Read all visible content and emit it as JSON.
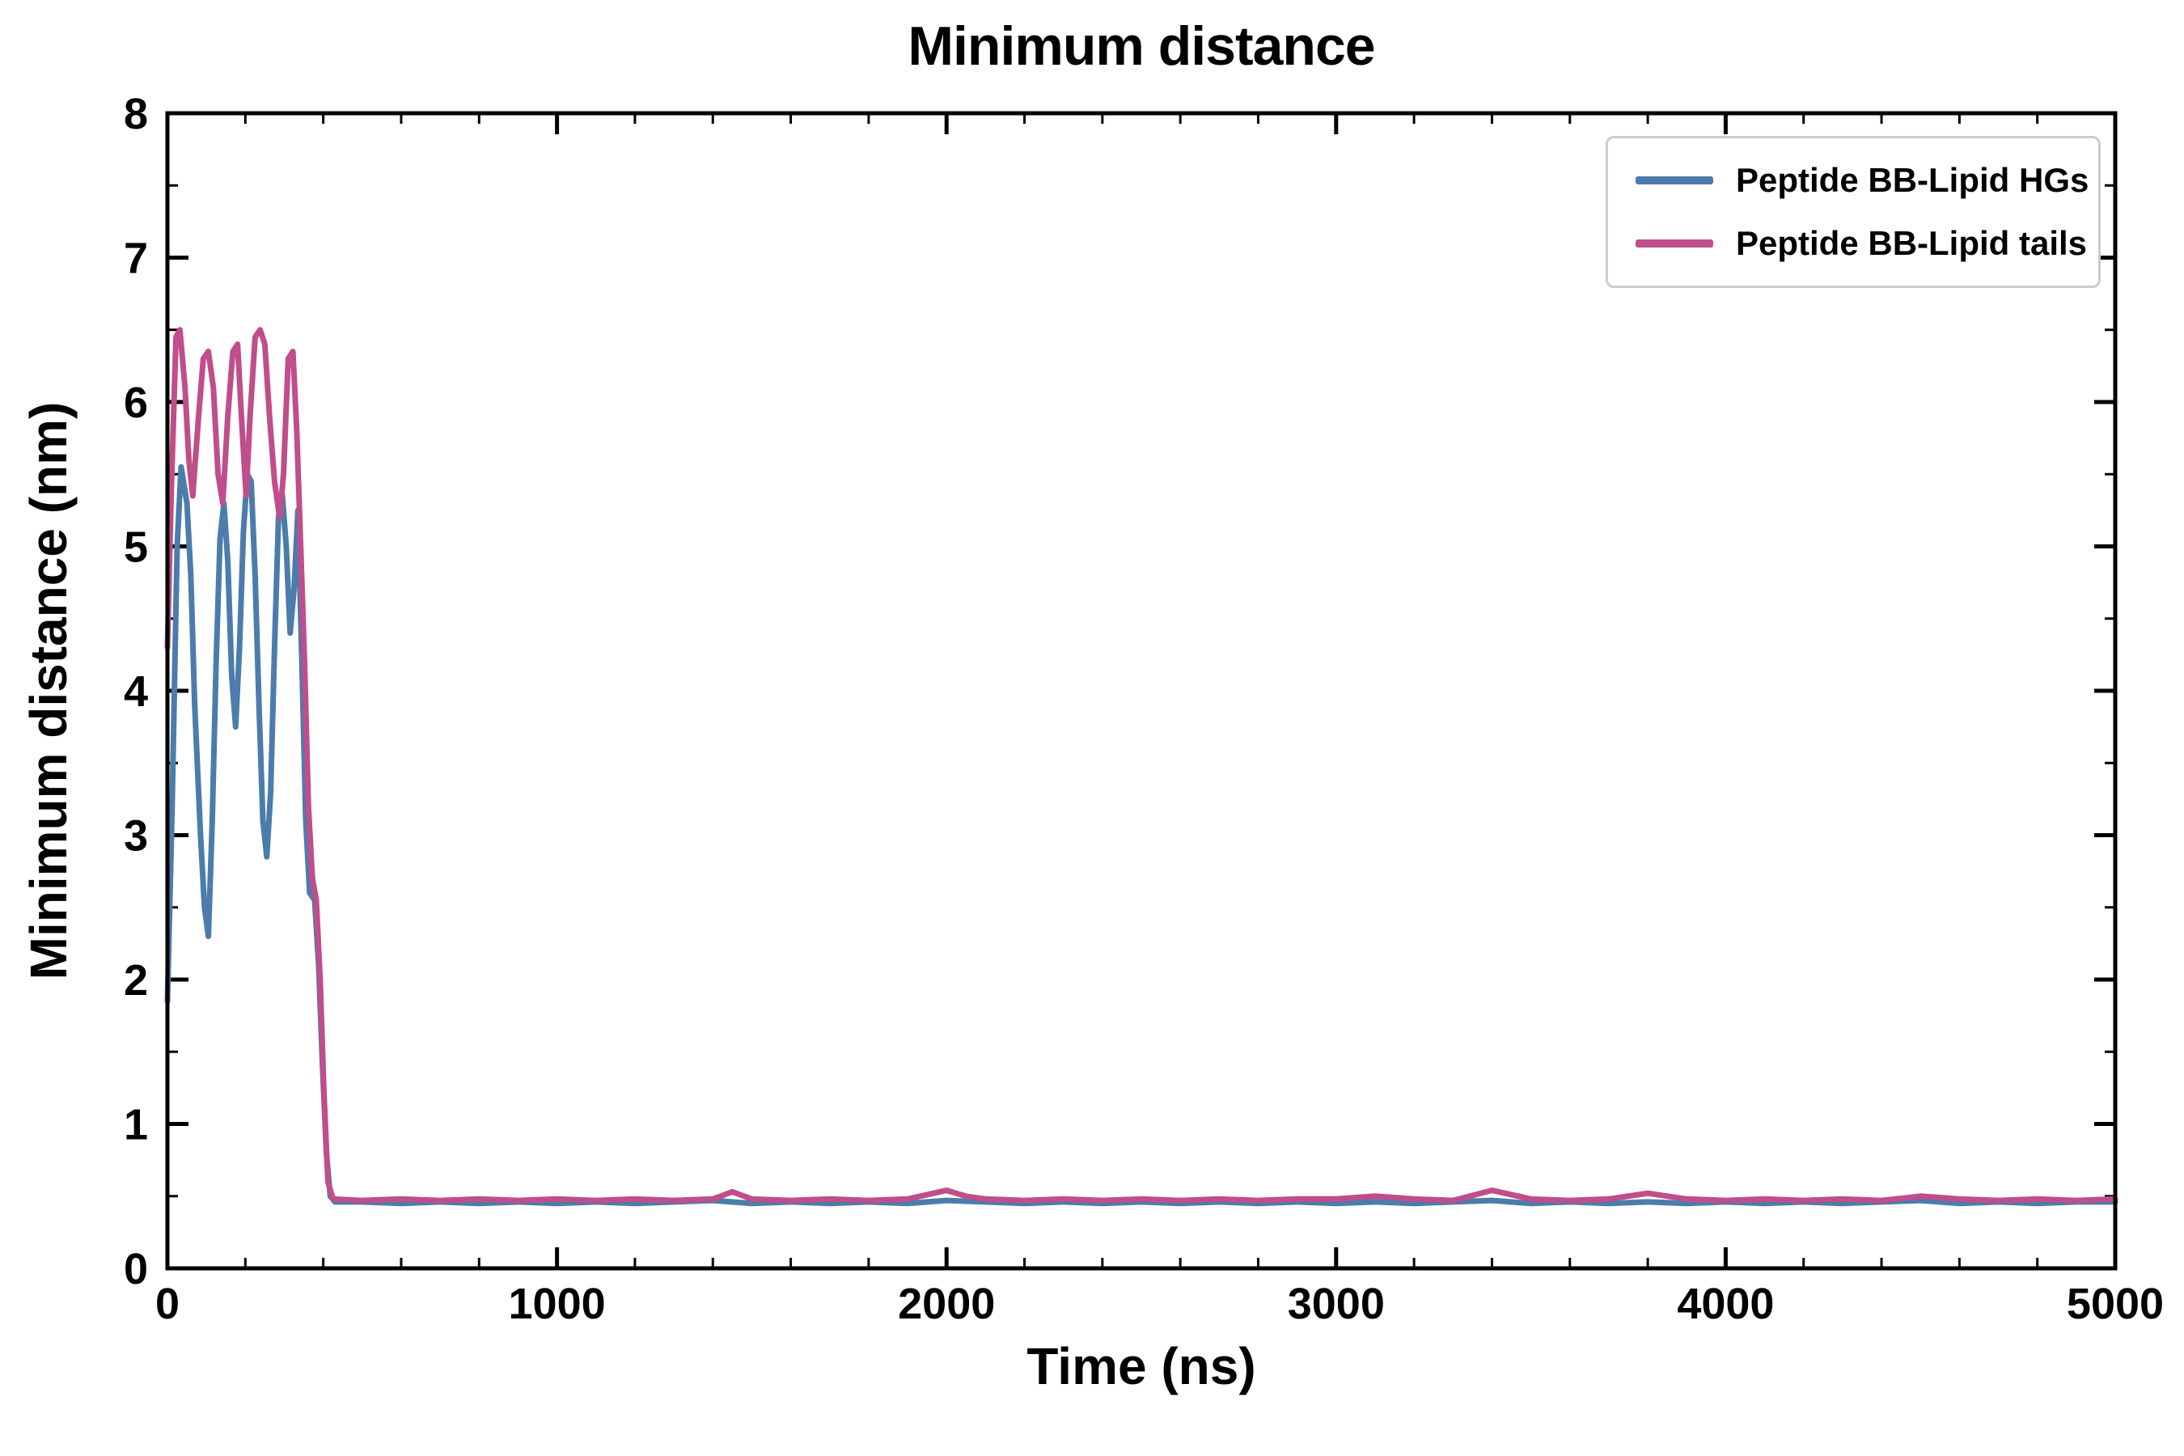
{
  "chart_data": {
    "type": "line",
    "title": "Minimum distance",
    "xlabel": "Time (ns)",
    "ylabel": "Minimum distance (nm)",
    "xlim": [
      0,
      5000
    ],
    "ylim": [
      0,
      8
    ],
    "xticks": [
      0,
      1000,
      2000,
      3000,
      4000,
      5000
    ],
    "yticks": [
      0,
      1,
      2,
      3,
      4,
      5,
      6,
      7,
      8
    ],
    "x_minor_step": 200,
    "y_minor_step": 0.5,
    "grid": false,
    "legend_position": "upper right",
    "axis_color": "#000000",
    "series": [
      {
        "name": "Peptide BB-Lipid HGs",
        "color": "#4c7cac",
        "points": [
          [
            0,
            1.85
          ],
          [
            12,
            3.2
          ],
          [
            25,
            5.0
          ],
          [
            35,
            5.55
          ],
          [
            50,
            5.3
          ],
          [
            60,
            4.8
          ],
          [
            70,
            3.9
          ],
          [
            85,
            3.0
          ],
          [
            95,
            2.5
          ],
          [
            105,
            2.3
          ],
          [
            115,
            3.1
          ],
          [
            125,
            4.2
          ],
          [
            135,
            5.05
          ],
          [
            145,
            5.3
          ],
          [
            155,
            4.9
          ],
          [
            165,
            4.1
          ],
          [
            175,
            3.75
          ],
          [
            185,
            4.3
          ],
          [
            195,
            5.1
          ],
          [
            205,
            5.5
          ],
          [
            215,
            5.45
          ],
          [
            225,
            4.8
          ],
          [
            235,
            3.9
          ],
          [
            245,
            3.1
          ],
          [
            255,
            2.85
          ],
          [
            265,
            3.3
          ],
          [
            275,
            4.3
          ],
          [
            285,
            5.2
          ],
          [
            295,
            5.35
          ],
          [
            305,
            5.0
          ],
          [
            315,
            4.4
          ],
          [
            325,
            4.7
          ],
          [
            335,
            5.25
          ],
          [
            345,
            4.2
          ],
          [
            355,
            3.1
          ],
          [
            365,
            2.6
          ],
          [
            378,
            2.55
          ],
          [
            388,
            2.1
          ],
          [
            398,
            1.4
          ],
          [
            408,
            0.8
          ],
          [
            418,
            0.5
          ],
          [
            430,
            0.46
          ],
          [
            500,
            0.46
          ],
          [
            600,
            0.45
          ],
          [
            700,
            0.46
          ],
          [
            800,
            0.45
          ],
          [
            900,
            0.46
          ],
          [
            1000,
            0.45
          ],
          [
            1100,
            0.46
          ],
          [
            1200,
            0.45
          ],
          [
            1300,
            0.46
          ],
          [
            1400,
            0.47
          ],
          [
            1500,
            0.45
          ],
          [
            1600,
            0.46
          ],
          [
            1700,
            0.45
          ],
          [
            1800,
            0.46
          ],
          [
            1900,
            0.45
          ],
          [
            2000,
            0.47
          ],
          [
            2100,
            0.46
          ],
          [
            2200,
            0.45
          ],
          [
            2300,
            0.46
          ],
          [
            2400,
            0.45
          ],
          [
            2500,
            0.46
          ],
          [
            2600,
            0.45
          ],
          [
            2700,
            0.46
          ],
          [
            2800,
            0.45
          ],
          [
            2900,
            0.46
          ],
          [
            3000,
            0.45
          ],
          [
            3100,
            0.46
          ],
          [
            3200,
            0.45
          ],
          [
            3300,
            0.46
          ],
          [
            3400,
            0.47
          ],
          [
            3500,
            0.45
          ],
          [
            3600,
            0.46
          ],
          [
            3700,
            0.45
          ],
          [
            3800,
            0.46
          ],
          [
            3900,
            0.45
          ],
          [
            4000,
            0.46
          ],
          [
            4100,
            0.45
          ],
          [
            4200,
            0.46
          ],
          [
            4300,
            0.45
          ],
          [
            4400,
            0.46
          ],
          [
            4500,
            0.47
          ],
          [
            4600,
            0.45
          ],
          [
            4700,
            0.46
          ],
          [
            4800,
            0.45
          ],
          [
            4900,
            0.46
          ],
          [
            5000,
            0.46
          ]
        ]
      },
      {
        "name": "Peptide BB-Lipid tails",
        "color": "#bf4e8a",
        "points": [
          [
            0,
            4.3
          ],
          [
            10,
            5.4
          ],
          [
            22,
            6.45
          ],
          [
            32,
            6.5
          ],
          [
            45,
            6.1
          ],
          [
            55,
            5.6
          ],
          [
            65,
            5.35
          ],
          [
            80,
            5.9
          ],
          [
            92,
            6.3
          ],
          [
            105,
            6.35
          ],
          [
            118,
            6.1
          ],
          [
            130,
            5.5
          ],
          [
            142,
            5.3
          ],
          [
            155,
            5.9
          ],
          [
            168,
            6.35
          ],
          [
            180,
            6.4
          ],
          [
            192,
            5.8
          ],
          [
            202,
            5.35
          ],
          [
            212,
            5.9
          ],
          [
            225,
            6.45
          ],
          [
            238,
            6.5
          ],
          [
            250,
            6.4
          ],
          [
            262,
            5.9
          ],
          [
            275,
            5.45
          ],
          [
            288,
            5.2
          ],
          [
            298,
            5.5
          ],
          [
            310,
            6.3
          ],
          [
            322,
            6.35
          ],
          [
            332,
            5.8
          ],
          [
            342,
            5.0
          ],
          [
            352,
            4.2
          ],
          [
            362,
            3.2
          ],
          [
            372,
            2.7
          ],
          [
            382,
            2.55
          ],
          [
            392,
            2.0
          ],
          [
            402,
            1.2
          ],
          [
            412,
            0.6
          ],
          [
            425,
            0.48
          ],
          [
            500,
            0.47
          ],
          [
            600,
            0.48
          ],
          [
            700,
            0.47
          ],
          [
            800,
            0.48
          ],
          [
            900,
            0.47
          ],
          [
            1000,
            0.48
          ],
          [
            1100,
            0.47
          ],
          [
            1200,
            0.48
          ],
          [
            1300,
            0.47
          ],
          [
            1400,
            0.48
          ],
          [
            1450,
            0.53
          ],
          [
            1500,
            0.48
          ],
          [
            1600,
            0.47
          ],
          [
            1700,
            0.48
          ],
          [
            1800,
            0.47
          ],
          [
            1900,
            0.48
          ],
          [
            2000,
            0.54
          ],
          [
            2050,
            0.5
          ],
          [
            2100,
            0.48
          ],
          [
            2200,
            0.47
          ],
          [
            2300,
            0.48
          ],
          [
            2400,
            0.47
          ],
          [
            2500,
            0.48
          ],
          [
            2600,
            0.47
          ],
          [
            2700,
            0.48
          ],
          [
            2800,
            0.47
          ],
          [
            2900,
            0.48
          ],
          [
            3000,
            0.48
          ],
          [
            3100,
            0.5
          ],
          [
            3200,
            0.48
          ],
          [
            3300,
            0.47
          ],
          [
            3400,
            0.54
          ],
          [
            3500,
            0.48
          ],
          [
            3600,
            0.47
          ],
          [
            3700,
            0.48
          ],
          [
            3800,
            0.52
          ],
          [
            3900,
            0.48
          ],
          [
            4000,
            0.47
          ],
          [
            4100,
            0.48
          ],
          [
            4200,
            0.47
          ],
          [
            4300,
            0.48
          ],
          [
            4400,
            0.47
          ],
          [
            4500,
            0.5
          ],
          [
            4600,
            0.48
          ],
          [
            4700,
            0.47
          ],
          [
            4800,
            0.48
          ],
          [
            4900,
            0.47
          ],
          [
            5000,
            0.48
          ]
        ]
      }
    ]
  }
}
